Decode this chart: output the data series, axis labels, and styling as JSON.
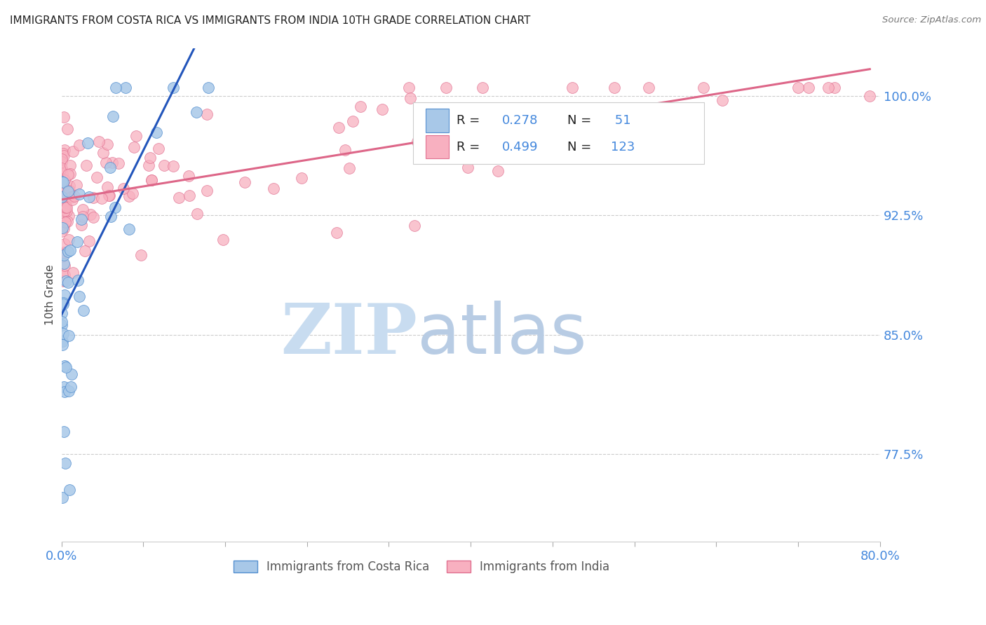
{
  "title": "IMMIGRANTS FROM COSTA RICA VS IMMIGRANTS FROM INDIA 10TH GRADE CORRELATION CHART",
  "source": "Source: ZipAtlas.com",
  "ylabel": "10th Grade",
  "ytick_labels": [
    "100.0%",
    "92.5%",
    "85.0%",
    "77.5%"
  ],
  "ytick_values": [
    1.0,
    0.925,
    0.85,
    0.775
  ],
  "xmin": 0.0,
  "xmax": 0.8,
  "ymin": 0.72,
  "ymax": 1.03,
  "color_costa_rica_fill": "#a8c8e8",
  "color_costa_rica_edge": "#5590d0",
  "color_india_fill": "#f8b0c0",
  "color_india_edge": "#e07090",
  "color_line_cr": "#2255bb",
  "color_line_india": "#dd6688",
  "color_axis_blue": "#4488dd",
  "color_grid": "#cccccc",
  "legend_r1_text": "R = 0.278",
  "legend_n1_text": "N =  51",
  "legend_r2_text": "R = 0.499",
  "legend_n2_text": "N = 123",
  "watermark_zip_color": "#c8dcf0",
  "watermark_atlas_color": "#b8cce4"
}
